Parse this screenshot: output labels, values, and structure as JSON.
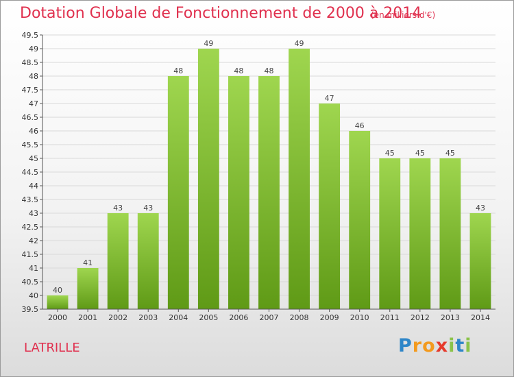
{
  "header": {
    "title": "Dotation Globale de Fonctionnement de 2000 à 2014",
    "subtitle": "(en milliers d'€)"
  },
  "commune": "LATRILLE",
  "logo": {
    "text": "Proxiti",
    "letters": [
      {
        "ch": "P",
        "color": "#2e86c8"
      },
      {
        "ch": "r",
        "color": "#f39a1e"
      },
      {
        "ch": "o",
        "color": "#f39a1e"
      },
      {
        "ch": "x",
        "color": "#e63a2c"
      },
      {
        "ch": "i",
        "color": "#8bc34a"
      },
      {
        "ch": "t",
        "color": "#2e86c8"
      },
      {
        "ch": "i",
        "color": "#8bc34a"
      }
    ]
  },
  "colors": {
    "title": "#e0304e",
    "bar_top": "#9fd64f",
    "bar_bottom": "#5f9a16",
    "grid": "#d9d9d9",
    "axis": "#555555"
  },
  "chart_data": {
    "type": "bar",
    "categories": [
      "2000",
      "2001",
      "2002",
      "2003",
      "2004",
      "2005",
      "2006",
      "2007",
      "2008",
      "2009",
      "2010",
      "2011",
      "2012",
      "2013",
      "2014"
    ],
    "values": [
      40,
      41,
      43,
      43,
      48,
      49,
      48,
      48,
      49,
      47,
      46,
      45,
      45,
      45,
      43
    ],
    "data_labels": [
      "40",
      "41",
      "43",
      "43",
      "48",
      "49",
      "48",
      "48",
      "49",
      "47",
      "46",
      "45",
      "45",
      "45",
      "43"
    ],
    "ylim": [
      39.5,
      49.5
    ],
    "yticks": [
      39.5,
      40,
      40.5,
      41,
      41.5,
      42,
      42.5,
      43,
      43.5,
      44,
      44.5,
      45,
      45.5,
      46,
      46.5,
      47,
      47.5,
      48,
      48.5,
      49,
      49.5
    ],
    "ytick_labels": [
      "39.5",
      "40",
      "40.5",
      "41",
      "41.5",
      "42",
      "42.5",
      "43",
      "43.5",
      "44",
      "44.5",
      "45",
      "45.5",
      "46",
      "46.5",
      "47",
      "47.5",
      "48",
      "48.5",
      "49",
      "49.5"
    ],
    "grid": true,
    "title": "Dotation Globale de Fonctionnement de 2000 à 2014",
    "xlabel": "",
    "ylabel": ""
  }
}
